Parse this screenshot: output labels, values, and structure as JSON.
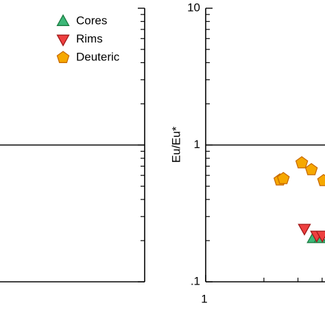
{
  "chart_data": {
    "type": "scatter",
    "y_label": "Eu/Eu*",
    "log_x": true,
    "log_y": true,
    "xlim": [
      1,
      4.14
    ],
    "xticks": [
      1
    ],
    "xminor": [
      2,
      3,
      4
    ],
    "ylim": [
      0.1,
      10
    ],
    "yticks": [
      {
        "value": 0.1,
        "label": ".1"
      },
      1,
      10
    ],
    "yminor": [
      0.2,
      0.3,
      0.4,
      0.5,
      0.6,
      0.7,
      0.8,
      0.9,
      2,
      3,
      4,
      5,
      6,
      7,
      8,
      9
    ],
    "hline": 1,
    "series": [
      {
        "name": "Cores",
        "marker": "triangle-up",
        "color": "#3cb878",
        "edge": "#1a7a40",
        "x": [
          3.6,
          3.91
        ],
        "values": [
          0.208,
          0.208
        ]
      },
      {
        "name": "Rims",
        "marker": "triangle-down",
        "color": "#ee4040",
        "edge": "#a01818",
        "x": [
          3.24,
          3.75,
          4.01
        ],
        "values": [
          0.245,
          0.218,
          0.218
        ]
      },
      {
        "name": "Deuteric",
        "marker": "pentagon",
        "color": "#f6a800",
        "edge": "#c86a00",
        "x": [
          2.42,
          2.52,
          3.14,
          3.52,
          4.07
        ],
        "values": [
          0.555,
          0.568,
          0.741,
          0.66,
          0.549
        ]
      }
    ]
  }
}
